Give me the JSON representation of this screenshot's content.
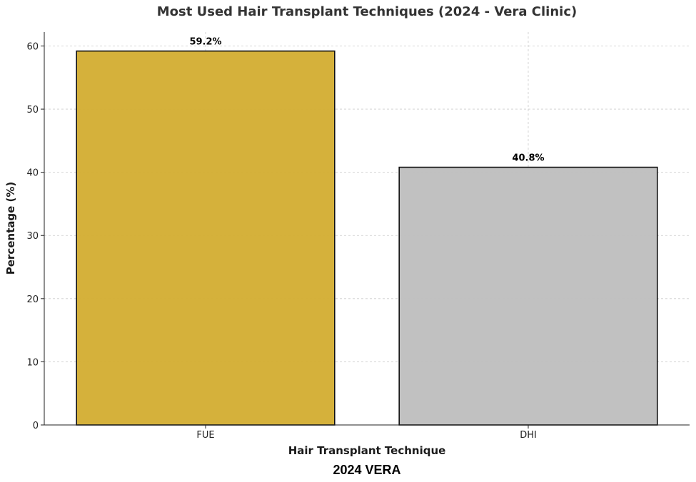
{
  "chart_data": {
    "type": "bar",
    "title": "Most Used Hair Transplant Techniques (2024 - Vera Clinic)",
    "xlabel": "Hair Transplant Technique",
    "ylabel": "Percentage (%)",
    "categories": [
      "FUE",
      "DHI"
    ],
    "values": [
      59.2,
      40.8
    ],
    "data_labels": [
      "59.2%",
      "40.8%"
    ],
    "colors": [
      "#d4af37",
      "#c0c0c0"
    ],
    "ylim": [
      0,
      62.2
    ],
    "yticks": [
      0,
      10,
      20,
      30,
      40,
      50,
      60
    ],
    "grid": true
  },
  "footer": {
    "text": "2024 VERA"
  }
}
